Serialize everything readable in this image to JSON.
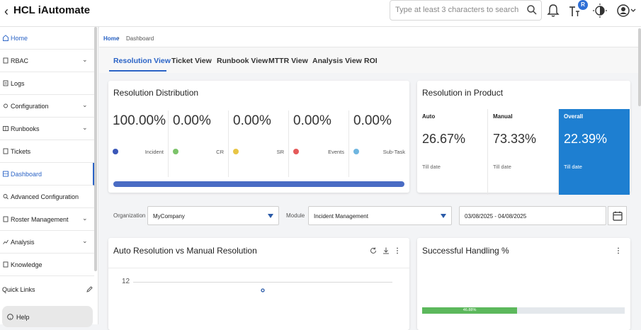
{
  "header": {
    "title": "HCL iAutomate",
    "search_placeholder": "Type at least 3 characters to search",
    "badge": "R"
  },
  "sidebar": {
    "items": [
      {
        "label": "Home",
        "icon": "home-icon",
        "chevron": false
      },
      {
        "label": "RBAC",
        "icon": "rbac-icon",
        "chevron": true
      },
      {
        "label": "Logs",
        "icon": "logs-icon",
        "chevron": false
      },
      {
        "label": "Configuration",
        "icon": "configuration-icon",
        "chevron": true
      },
      {
        "label": "Runbooks",
        "icon": "runbooks-icon",
        "chevron": true
      },
      {
        "label": "Tickets",
        "icon": "tickets-icon",
        "chevron": false
      },
      {
        "label": "Dashboard",
        "icon": "dashboard-icon",
        "chevron": false
      },
      {
        "label": "Advanced Configuration",
        "icon": "advanced-config-icon",
        "chevron": false
      },
      {
        "label": "Roster Management",
        "icon": "roster-icon",
        "chevron": true
      },
      {
        "label": "Analysis",
        "icon": "analysis-icon",
        "chevron": true
      },
      {
        "label": "Knowledge",
        "icon": "knowledge-icon",
        "chevron": false
      }
    ],
    "quick_links": "Quick Links",
    "help": "Help"
  },
  "breadcrumb": {
    "home": "Home",
    "current": "Dashboard"
  },
  "tabs": [
    {
      "label": "Resolution View"
    },
    {
      "label": "Ticket View"
    },
    {
      "label": "Runbook View"
    },
    {
      "label": "MTTR View"
    },
    {
      "label": "Analysis View"
    },
    {
      "label": "ROI"
    }
  ],
  "resolution_distribution": {
    "title": "Resolution Distribution",
    "metrics": [
      {
        "value": "100.00%",
        "label": "Incident",
        "color": "#3a57b8"
      },
      {
        "value": "0.00%",
        "label": "CR",
        "color": "#7cc36a"
      },
      {
        "value": "0.00%",
        "label": "SR",
        "color": "#e8c545"
      },
      {
        "value": "0.00%",
        "label": "Events",
        "color": "#e55a5a"
      },
      {
        "value": "0.00%",
        "label": "Sub-Task",
        "color": "#6fb6e0"
      }
    ]
  },
  "resolution_in_product": {
    "title": "Resolution in Product",
    "items": [
      {
        "label": "Auto",
        "value": "26.67%",
        "sub": "Till date"
      },
      {
        "label": "Manual",
        "value": "73.33%",
        "sub": "Till date"
      },
      {
        "label": "Overall",
        "value": "22.39%",
        "sub": "Till date"
      }
    ]
  },
  "filters": {
    "organization_label": "Organization",
    "organization_value": "MyCompany",
    "module_label": "Module",
    "module_value": "Incident Management",
    "date_range": "03/08/2025 - 04/08/2025"
  },
  "auto_vs_manual": {
    "title": "Auto Resolution vs Manual Resolution",
    "y_tick": "12"
  },
  "successful_handling": {
    "title": "Successful Handling %",
    "bar_label": "46.88%",
    "percent": 46.88
  },
  "colors": {
    "accent": "#2a63c6",
    "overall_bg": "#1e7fd1",
    "success_bar": "#5cb85c"
  }
}
